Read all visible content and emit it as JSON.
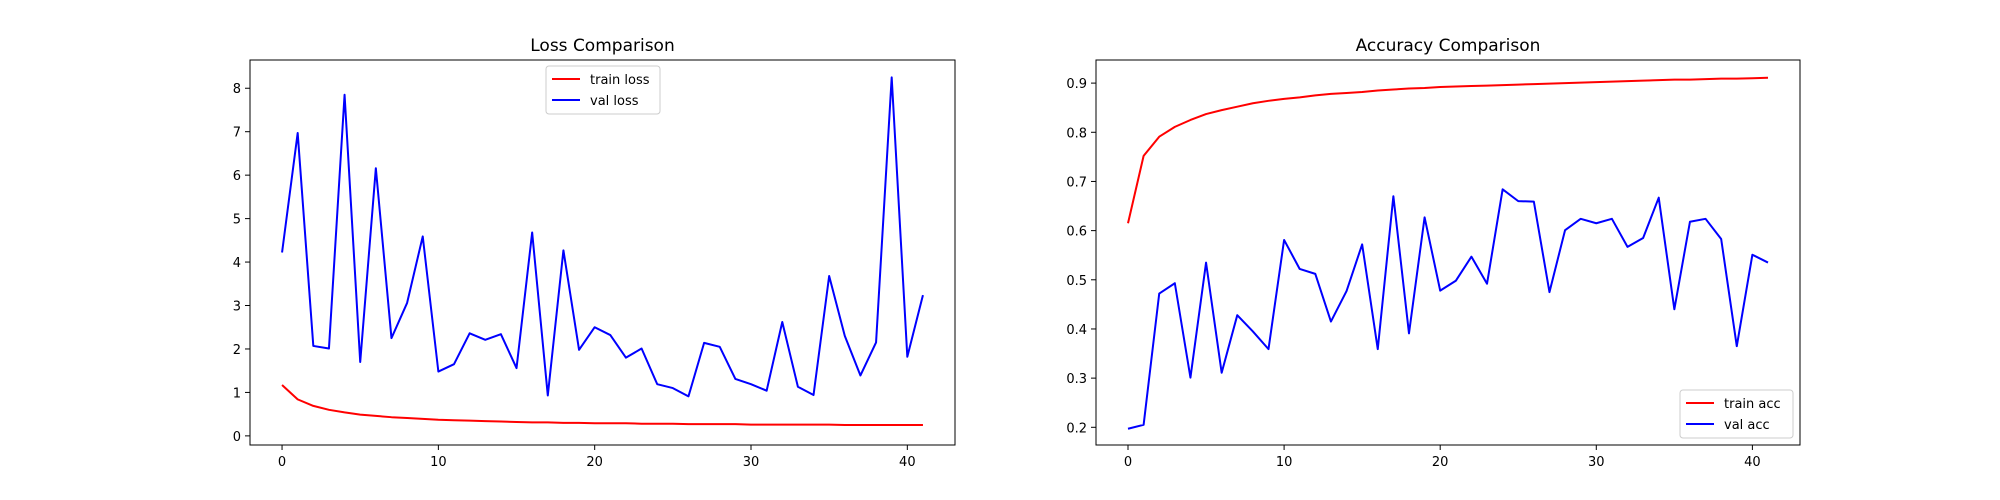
{
  "chart_data": [
    {
      "type": "line",
      "title": "Loss Comparison",
      "xlabel": "",
      "ylabel": "",
      "xlim": [
        -2.05,
        43.05
      ],
      "ylim": [
        -0.21,
        8.65
      ],
      "xticks": [
        0,
        10,
        20,
        30,
        40
      ],
      "yticks": [
        0,
        1,
        2,
        3,
        4,
        5,
        6,
        7,
        8
      ],
      "grid": false,
      "legend_position": "upper-center",
      "x": [
        0,
        1,
        2,
        3,
        4,
        5,
        6,
        7,
        8,
        9,
        10,
        11,
        12,
        13,
        14,
        15,
        16,
        17,
        18,
        19,
        20,
        21,
        22,
        23,
        24,
        25,
        26,
        27,
        28,
        29,
        30,
        31,
        32,
        33,
        34,
        35,
        36,
        37,
        38,
        39,
        40,
        41
      ],
      "series": [
        {
          "name": "train loss",
          "color": "#ff0000",
          "values": [
            1.17,
            0.84,
            0.69,
            0.6,
            0.54,
            0.49,
            0.46,
            0.43,
            0.41,
            0.39,
            0.37,
            0.36,
            0.35,
            0.34,
            0.33,
            0.32,
            0.31,
            0.31,
            0.3,
            0.3,
            0.29,
            0.29,
            0.29,
            0.28,
            0.28,
            0.28,
            0.27,
            0.27,
            0.27,
            0.27,
            0.26,
            0.26,
            0.26,
            0.26,
            0.26,
            0.26,
            0.25,
            0.25,
            0.25,
            0.25,
            0.25,
            0.25
          ]
        },
        {
          "name": "val loss",
          "color": "#0000ff",
          "values": [
            4.22,
            6.97,
            2.07,
            2.01,
            7.85,
            1.7,
            6.16,
            2.25,
            3.06,
            4.59,
            1.48,
            1.65,
            2.36,
            2.21,
            2.34,
            1.56,
            4.68,
            0.93,
            4.27,
            1.98,
            2.5,
            2.32,
            1.8,
            2.01,
            1.19,
            1.1,
            0.91,
            2.14,
            2.05,
            1.31,
            1.19,
            1.04,
            2.62,
            1.13,
            0.94,
            3.68,
            2.3,
            1.39,
            2.15,
            8.25,
            1.82,
            3.24
          ]
        }
      ]
    },
    {
      "type": "line",
      "title": "Accuracy Comparison",
      "xlabel": "",
      "ylabel": "",
      "xlim": [
        -2.05,
        43.05
      ],
      "ylim": [
        0.164,
        0.947
      ],
      "xticks": [
        0,
        10,
        20,
        30,
        40
      ],
      "yticks": [
        0.2,
        0.3,
        0.4,
        0.5,
        0.6,
        0.7,
        0.8,
        0.9
      ],
      "ytick_labels": [
        "0.2",
        "0.3",
        "0.4",
        "0.5",
        "0.6",
        "0.7",
        "0.8",
        "0.9"
      ],
      "grid": false,
      "legend_position": "lower-right",
      "x": [
        0,
        1,
        2,
        3,
        4,
        5,
        6,
        7,
        8,
        9,
        10,
        11,
        12,
        13,
        14,
        15,
        16,
        17,
        18,
        19,
        20,
        21,
        22,
        23,
        24,
        25,
        26,
        27,
        28,
        29,
        30,
        31,
        32,
        33,
        34,
        35,
        36,
        37,
        38,
        39,
        40,
        41
      ],
      "series": [
        {
          "name": "train acc",
          "color": "#ff0000",
          "values": [
            0.615,
            0.752,
            0.791,
            0.811,
            0.825,
            0.837,
            0.845,
            0.852,
            0.859,
            0.864,
            0.868,
            0.871,
            0.875,
            0.878,
            0.88,
            0.882,
            0.885,
            0.887,
            0.889,
            0.89,
            0.892,
            0.893,
            0.894,
            0.895,
            0.896,
            0.897,
            0.898,
            0.899,
            0.9,
            0.901,
            0.902,
            0.903,
            0.904,
            0.905,
            0.906,
            0.907,
            0.907,
            0.908,
            0.909,
            0.909,
            0.91,
            0.911
          ]
        },
        {
          "name": "val acc",
          "color": "#0000ff",
          "values": [
            0.197,
            0.205,
            0.472,
            0.493,
            0.301,
            0.535,
            0.311,
            0.428,
            0.395,
            0.359,
            0.581,
            0.522,
            0.512,
            0.415,
            0.477,
            0.572,
            0.359,
            0.67,
            0.391,
            0.627,
            0.478,
            0.498,
            0.547,
            0.492,
            0.684,
            0.66,
            0.659,
            0.475,
            0.601,
            0.624,
            0.615,
            0.624,
            0.567,
            0.585,
            0.667,
            0.44,
            0.618,
            0.624,
            0.583,
            0.365,
            0.551,
            0.535
          ]
        }
      ]
    }
  ]
}
